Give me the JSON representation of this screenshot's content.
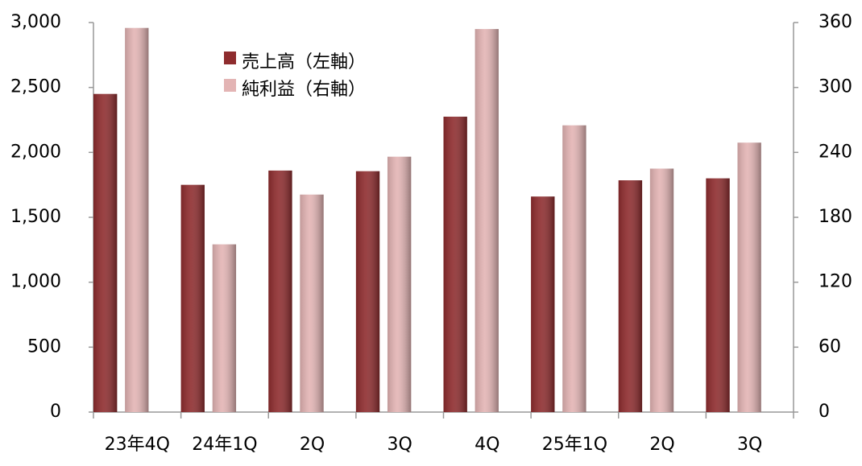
{
  "chart_data": {
    "type": "bar",
    "categories": [
      "23年4Q",
      "24年1Q",
      "2Q",
      "3Q",
      "4Q",
      "25年1Q",
      "2Q",
      "3Q"
    ],
    "series": [
      {
        "name": "売上高（左軸）",
        "color": "#8e2c2e",
        "values": [
          2450,
          1750,
          1860,
          1855,
          2275,
          1660,
          1785,
          1800
        ]
      },
      {
        "name": "純利益（右軸）",
        "color": "#e3b4b4",
        "axis": "y2",
        "values": [
          355,
          155,
          201,
          236,
          354,
          265,
          225,
          249
        ]
      }
    ],
    "ylim": [
      0,
      3000
    ],
    "yticks": [
      0,
      500,
      {
        "value": 1000,
        "label": "1,000"
      },
      {
        "value": 1500,
        "label": "1,500"
      },
      {
        "value": 2000,
        "label": "2,000"
      },
      {
        "value": 2500,
        "label": "2,500"
      },
      {
        "value": 3000,
        "label": "3,000"
      }
    ],
    "y2lim": [
      0,
      360
    ],
    "y2ticks": [
      0,
      60,
      120,
      180,
      240,
      300,
      360
    ],
    "grid": false,
    "legend": "top-left"
  }
}
